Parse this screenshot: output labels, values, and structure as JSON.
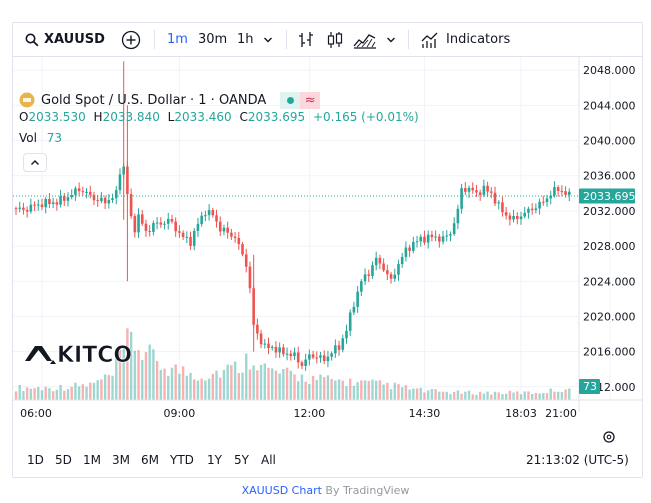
{
  "toolbar": {
    "symbol": "XAUUSD",
    "intervals": [
      "1m",
      "30m",
      "1h"
    ],
    "active_interval": "1m",
    "indicators_label": "Indicators"
  },
  "legend": {
    "title": "Gold Spot / U.S. Dollar · 1 · OANDA",
    "o_label": "O",
    "o_value": "2033.530",
    "h_label": "H",
    "h_value": "2033.840",
    "l_label": "L",
    "l_value": "2033.460",
    "c_label": "C",
    "c_value": "2033.695",
    "change": "+0.165 (+0.01%)",
    "vol_label": "Vol",
    "vol_value": "73"
  },
  "watermark": "KITCO",
  "price_badge": "2033.695",
  "volume_badge": "73",
  "range_buttons": [
    "1D",
    "5D",
    "1M",
    "3M",
    "6M",
    "YTD",
    "1Y",
    "5Y",
    "All"
  ],
  "clock": "21:13:02 (UTC-5)",
  "footer": {
    "link": "XAUUSD Chart",
    "by": " By TradingView"
  },
  "colors": {
    "up": "#26a69a",
    "down": "#ef5350",
    "accent": "#2962ff"
  },
  "chart_data": {
    "type": "candlestick",
    "y_ticks": [
      "2048.000",
      "2044.000",
      "2040.000",
      "2036.000",
      "2032.000",
      "2028.000",
      "2024.000",
      "2020.000",
      "2016.000",
      "2012.000"
    ],
    "x_ticks": [
      "06:00",
      "09:00",
      "12:00",
      "14:30",
      "18:03",
      "21:00"
    ],
    "ylim": [
      2010.5,
      2049.5
    ],
    "last_price": 2033.695,
    "price_path": [
      [
        0,
        2032.3
      ],
      [
        3,
        2032.1
      ],
      [
        6,
        2032.6
      ],
      [
        9,
        2032.9
      ],
      [
        12,
        2033.0
      ],
      [
        15,
        2033.6
      ],
      [
        18,
        2034.5
      ],
      [
        20,
        2034.0
      ],
      [
        22,
        2033.4
      ],
      [
        25,
        2033.0
      ],
      [
        28,
        2033.9
      ],
      [
        29,
        2036.5
      ],
      [
        30,
        2037.0
      ],
      [
        31,
        2034.0
      ],
      [
        32,
        2031.0
      ],
      [
        33,
        2030.0
      ],
      [
        34,
        2031.5
      ],
      [
        36,
        2029.5
      ],
      [
        38,
        2030.5
      ],
      [
        40,
        2030.5
      ],
      [
        42,
        2031.0
      ],
      [
        44,
        2030.0
      ],
      [
        46,
        2029.0
      ],
      [
        48,
        2028.5
      ],
      [
        50,
        2030.5
      ],
      [
        52,
        2032.0
      ],
      [
        54,
        2031.5
      ],
      [
        56,
        2030.0
      ],
      [
        58,
        2029.5
      ],
      [
        60,
        2029.0
      ],
      [
        62,
        2027.0
      ],
      [
        63,
        2026.0
      ],
      [
        64,
        2023.0
      ],
      [
        65,
        2019.0
      ],
      [
        66,
        2018.0
      ],
      [
        68,
        2016.5
      ],
      [
        70,
        2016.5
      ],
      [
        72,
        2016.0
      ],
      [
        74,
        2015.8
      ],
      [
        76,
        2015.5
      ],
      [
        78,
        2014.5
      ],
      [
        80,
        2015.5
      ],
      [
        82,
        2015.5
      ],
      [
        84,
        2015.0
      ],
      [
        86,
        2016.0
      ],
      [
        88,
        2016.5
      ],
      [
        90,
        2018.5
      ],
      [
        92,
        2021.5
      ],
      [
        94,
        2024.0
      ],
      [
        96,
        2025.0
      ],
      [
        98,
        2026.5
      ],
      [
        100,
        2025.5
      ],
      [
        102,
        2024.0
      ],
      [
        104,
        2026.0
      ],
      [
        106,
        2027.5
      ],
      [
        108,
        2028.3
      ],
      [
        110,
        2028.8
      ],
      [
        112,
        2029.0
      ],
      [
        114,
        2029.0
      ],
      [
        116,
        2028.8
      ],
      [
        118,
        2029.5
      ],
      [
        120,
        2032.0
      ],
      [
        121,
        2034.5
      ],
      [
        123,
        2034.5
      ],
      [
        125,
        2034.0
      ],
      [
        127,
        2034.5
      ],
      [
        129,
        2034.0
      ],
      [
        131,
        2032.5
      ],
      [
        133,
        2031.5
      ],
      [
        135,
        2031.0
      ],
      [
        137,
        2031.5
      ],
      [
        139,
        2032.0
      ],
      [
        141,
        2032.5
      ],
      [
        143,
        2033.0
      ],
      [
        145,
        2034.0
      ],
      [
        147,
        2034.5
      ],
      [
        149,
        2034.0
      ],
      [
        150,
        2033.7
      ]
    ],
    "volume_path": [
      [
        0,
        0.2
      ],
      [
        10,
        0.2
      ],
      [
        20,
        0.25
      ],
      [
        26,
        0.4
      ],
      [
        29,
        0.85
      ],
      [
        31,
        1.0
      ],
      [
        34,
        0.8
      ],
      [
        40,
        0.55
      ],
      [
        50,
        0.4
      ],
      [
        60,
        0.55
      ],
      [
        64,
        0.75
      ],
      [
        66,
        0.55
      ],
      [
        70,
        0.45
      ],
      [
        80,
        0.35
      ],
      [
        90,
        0.3
      ],
      [
        100,
        0.25
      ],
      [
        110,
        0.15
      ],
      [
        120,
        0.12
      ],
      [
        130,
        0.12
      ],
      [
        140,
        0.12
      ],
      [
        150,
        0.2
      ]
    ]
  }
}
